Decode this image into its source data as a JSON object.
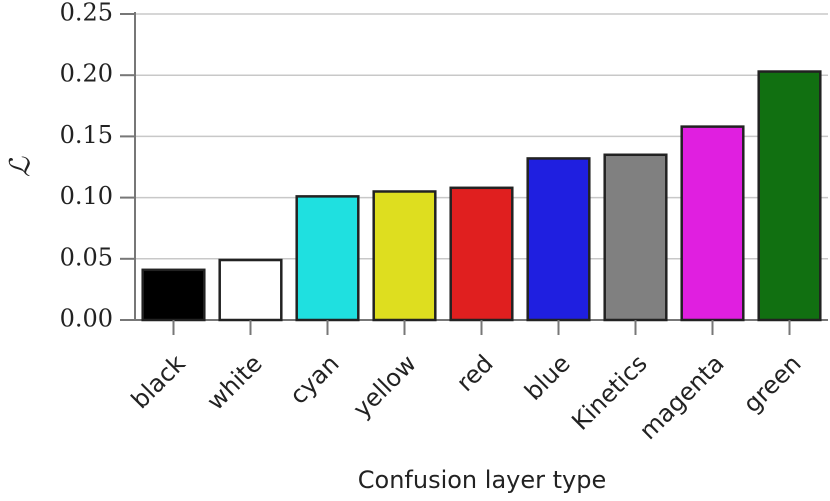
{
  "chart_data": {
    "type": "bar",
    "xlabel": "Confusion layer type",
    "ylabel": "ℒ",
    "categories": [
      "black",
      "white",
      "cyan",
      "yellow",
      "red",
      "blue",
      "Kinetics",
      "magenta",
      "green"
    ],
    "values": [
      0.041,
      0.049,
      0.101,
      0.105,
      0.108,
      0.132,
      0.135,
      0.158,
      0.203
    ],
    "colors": [
      "#000000",
      "#ffffff",
      "#1fe0e0",
      "#dede1f",
      "#e01f1f",
      "#1f1fe0",
      "#808080",
      "#e01fe0",
      "#117011"
    ],
    "ylim": [
      0,
      0.25
    ],
    "yticks": [
      {
        "value": 0,
        "label": "0.00"
      },
      0.05,
      {
        "value": 0.1,
        "label": "0.10"
      },
      0.15,
      {
        "value": 0.2,
        "label": "0.20"
      },
      0.25
    ],
    "grid": true
  }
}
